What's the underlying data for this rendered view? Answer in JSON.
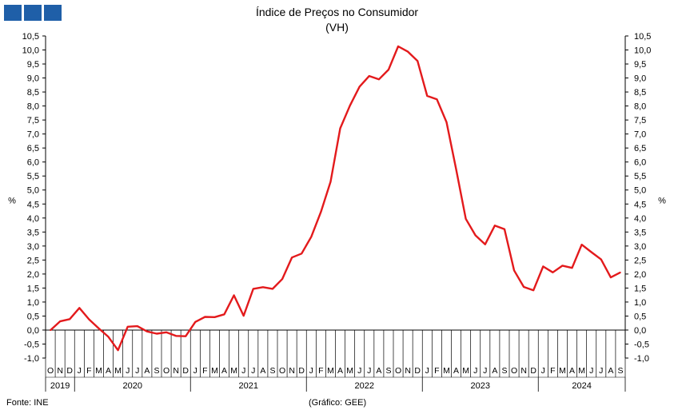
{
  "header": {
    "logo": "GEE logo",
    "title": "Índice de Preços no Consumidor",
    "subtitle": "(VH)"
  },
  "footer": {
    "source": "Fonte: INE",
    "credit": "(Gráfico: GEE)"
  },
  "chart_data": {
    "type": "line",
    "title": "Índice de Preços no Consumidor",
    "subtitle": "(VH)",
    "ylabel_left": "%",
    "ylabel_right": "%",
    "ylim": [
      -1.0,
      10.5
    ],
    "yticks": [
      "-1,0",
      "-0,5",
      "0,0",
      "0,5",
      "1,0",
      "1,5",
      "2,0",
      "2,5",
      "3,0",
      "3,5",
      "4,0",
      "4,5",
      "5,0",
      "5,5",
      "6,0",
      "6,5",
      "7,0",
      "7,5",
      "8,0",
      "8,5",
      "9,0",
      "9,5",
      "10,0",
      "10,5"
    ],
    "grid": false,
    "color": "#e31a1c",
    "month_labels": [
      "O",
      "N",
      "D",
      "J",
      "F",
      "M",
      "A",
      "M",
      "J",
      "J",
      "A",
      "S",
      "O",
      "N",
      "D",
      "J",
      "F",
      "M",
      "A",
      "M",
      "J",
      "J",
      "A",
      "S",
      "O",
      "N",
      "D",
      "J",
      "F",
      "M",
      "A",
      "M",
      "J",
      "J",
      "A",
      "S",
      "O",
      "N",
      "D",
      "J",
      "F",
      "M",
      "A",
      "M",
      "J",
      "J",
      "A",
      "S",
      "O",
      "N",
      "D",
      "J",
      "F",
      "M",
      "A",
      "M",
      "J",
      "J",
      "A",
      "S"
    ],
    "year_labels": [
      {
        "label": "2019",
        "months": 3
      },
      {
        "label": "2020",
        "months": 12
      },
      {
        "label": "2021",
        "months": 12
      },
      {
        "label": "2022",
        "months": 12
      },
      {
        "label": "2023",
        "months": 12
      },
      {
        "label": "2024",
        "months": 9
      }
    ],
    "series": [
      {
        "values": [
          -0.01,
          0.31,
          0.39,
          0.79,
          0.38,
          0.06,
          -0.24,
          -0.72,
          0.12,
          0.14,
          -0.05,
          -0.13,
          -0.08,
          -0.21,
          -0.22,
          0.29,
          0.47,
          0.46,
          0.56,
          1.24,
          0.51,
          1.47,
          1.53,
          1.47,
          1.82,
          2.59,
          2.73,
          3.33,
          4.22,
          5.3,
          7.2,
          8.01,
          8.69,
          9.07,
          8.95,
          9.3,
          10.13,
          9.94,
          9.61,
          8.36,
          8.24,
          7.42,
          5.74,
          3.97,
          3.38,
          3.06,
          3.73,
          3.6,
          2.13,
          1.54,
          1.42,
          2.27,
          2.06,
          2.3,
          2.22,
          3.05,
          2.78,
          2.52,
          1.88,
          2.06
        ]
      }
    ]
  }
}
